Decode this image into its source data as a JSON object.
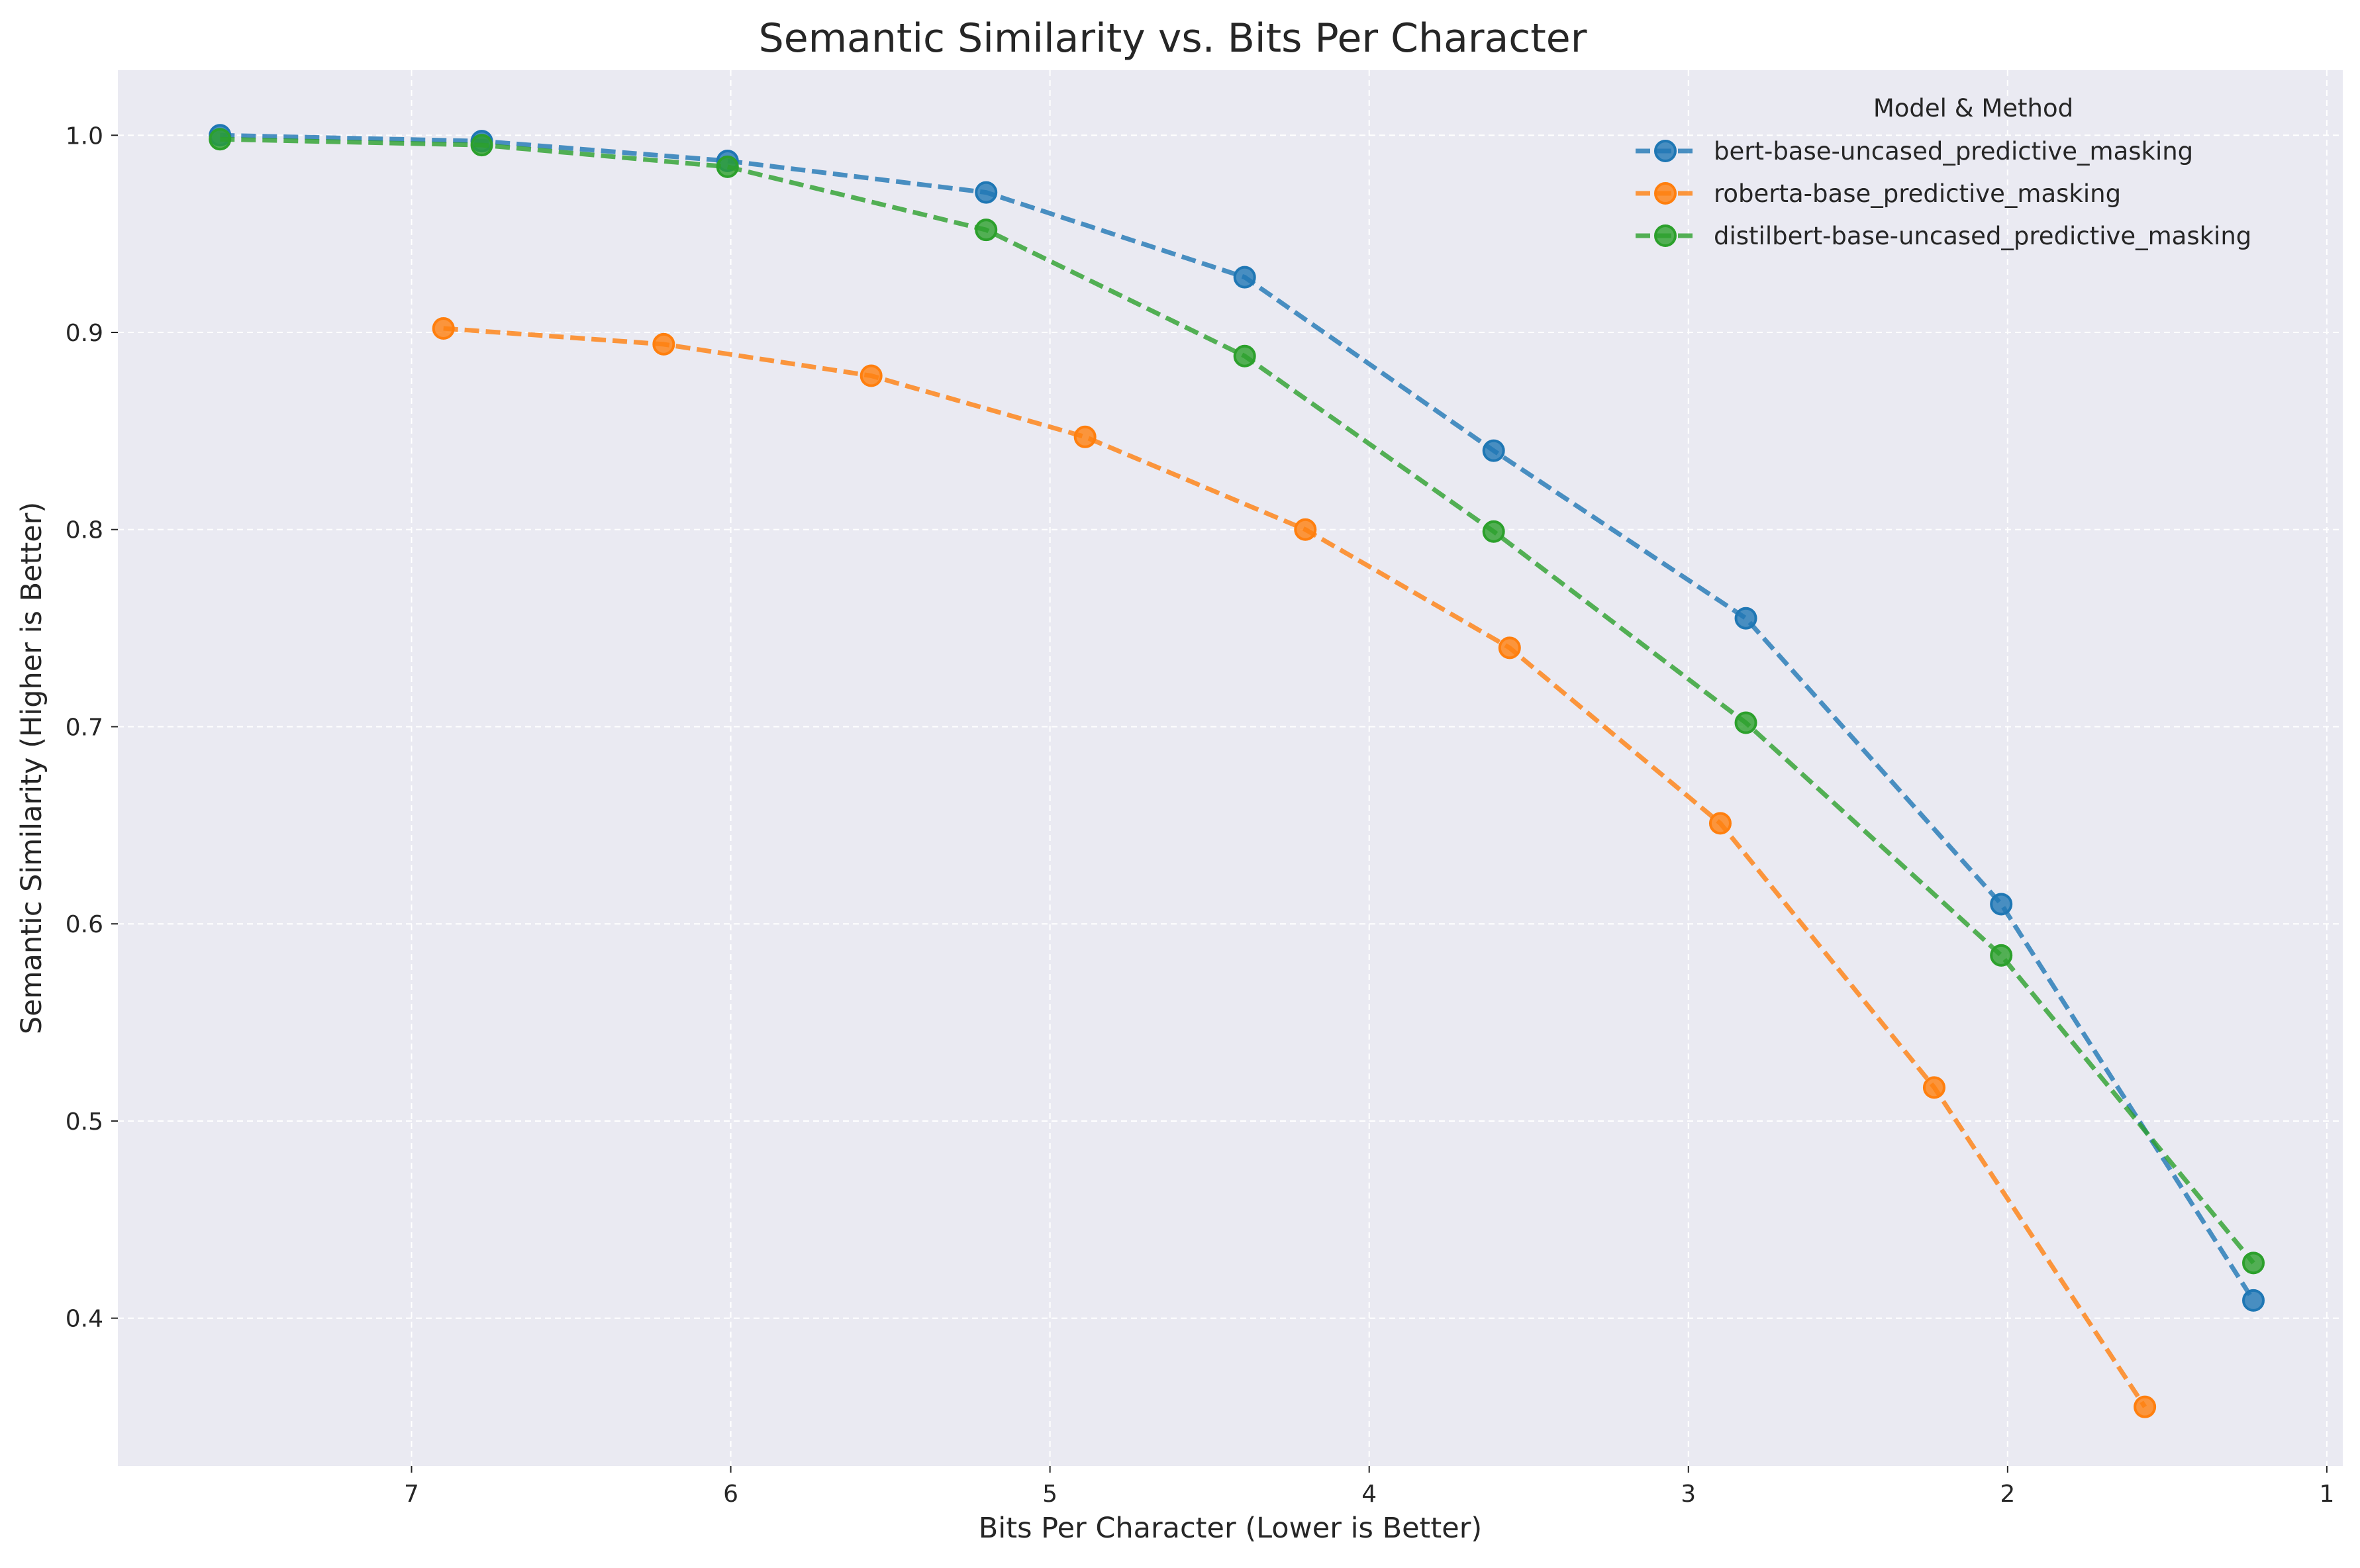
{
  "chart_data": {
    "type": "line",
    "title": "Semantic Similarity vs. Bits Per Character",
    "xlabel": "Bits Per Character (Lower is Better)",
    "ylabel": "Semantic Similarity (Higher is Better)",
    "xlim": [
      7.92,
      0.95
    ],
    "ylim": [
      0.325,
      1.033
    ],
    "x_inverted": true,
    "xticks": [
      7,
      6,
      5,
      4,
      3,
      2,
      1
    ],
    "yticks": [
      0.4,
      0.5,
      0.6,
      0.7,
      0.8,
      0.9,
      1.0
    ],
    "xtick_labels": [
      "7",
      "6",
      "5",
      "4",
      "3",
      "2",
      "1"
    ],
    "ytick_labels": [
      "0.4",
      "0.5",
      "0.6",
      "0.7",
      "0.8",
      "0.9",
      "1.0"
    ],
    "grid": true,
    "legend_title": "Model & Method",
    "legend_position": "top-right",
    "line_style": "dashed",
    "marker": "circle",
    "series": [
      {
        "name": "bert-base-uncased_predictive_masking",
        "color": "#1f77b4",
        "x": [
          7.6,
          6.78,
          6.01,
          5.2,
          4.39,
          3.61,
          2.82,
          2.02,
          1.23
        ],
        "y": [
          1.0,
          0.997,
          0.987,
          0.971,
          0.928,
          0.84,
          0.755,
          0.61,
          0.409
        ]
      },
      {
        "name": "roberta-base_predictive_masking",
        "color": "#ff7f0e",
        "x": [
          6.9,
          6.21,
          5.56,
          4.89,
          4.2,
          3.56,
          2.9,
          2.23,
          1.57
        ],
        "y": [
          0.902,
          0.894,
          0.878,
          0.847,
          0.8,
          0.74,
          0.651,
          0.517,
          0.355
        ]
      },
      {
        "name": "distilbert-base-uncased_predictive_masking",
        "color": "#2ca02c",
        "x": [
          7.6,
          6.78,
          6.01,
          5.2,
          4.39,
          3.61,
          2.82,
          2.02,
          1.23
        ],
        "y": [
          0.998,
          0.995,
          0.984,
          0.952,
          0.888,
          0.799,
          0.702,
          0.584,
          0.428
        ]
      }
    ]
  }
}
